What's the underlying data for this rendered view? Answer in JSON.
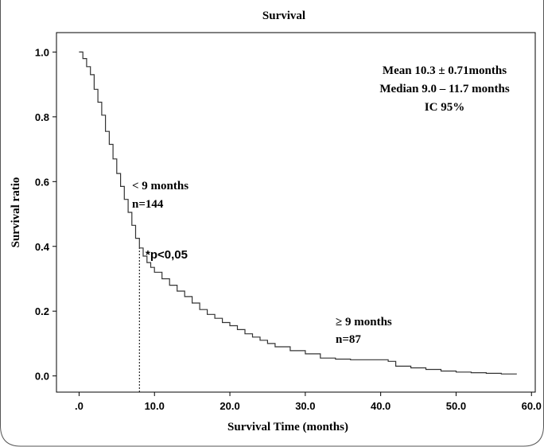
{
  "chart_data": {
    "type": "line",
    "subtype": "kaplan-meier-step",
    "title": "Survival",
    "xlabel": "Survival  Time (months)",
    "ylabel": "Survival  ratio",
    "xlim": [
      -3,
      60.5
    ],
    "ylim": [
      -0.05,
      1.06
    ],
    "x_ticks": [
      0,
      10,
      20,
      30,
      40,
      50,
      60
    ],
    "x_tick_labels": [
      ".0",
      "10.0",
      "20.0",
      "30.0",
      "40.0",
      "50.0",
      "60.0"
    ],
    "y_ticks": [
      0.0,
      0.2,
      0.4,
      0.6,
      0.8,
      1.0
    ],
    "y_tick_labels": [
      "0.0",
      "0.2",
      "0.4",
      "0.6",
      "0.8",
      "1.0"
    ],
    "grid": false,
    "series": [
      {
        "x": [
          0.0,
          0.5,
          1.0,
          1.5,
          2.0,
          2.5,
          3.0,
          3.5,
          4.0,
          4.5,
          5.0,
          5.5,
          6.0,
          6.5,
          7.0,
          7.5,
          8.0,
          8.5,
          9.0,
          9.5,
          10.0,
          11.0,
          12.0,
          13.0,
          14.0,
          15.0,
          16.0,
          17.0,
          18.0,
          19.0,
          20.0,
          21.0,
          22.0,
          23.0,
          24.0,
          25.0,
          26.0,
          28.0,
          30.0,
          32.0,
          34.0,
          36.0,
          38.0,
          40.0,
          41.0,
          42.0,
          44.0,
          46.0,
          48.0,
          50.0,
          52.0,
          54.0,
          56.0,
          58.0
        ],
        "y": [
          1.0,
          0.98,
          0.955,
          0.93,
          0.885,
          0.845,
          0.805,
          0.755,
          0.715,
          0.67,
          0.625,
          0.585,
          0.545,
          0.505,
          0.465,
          0.425,
          0.395,
          0.37,
          0.35,
          0.335,
          0.32,
          0.3,
          0.28,
          0.262,
          0.245,
          0.225,
          0.205,
          0.19,
          0.178,
          0.165,
          0.155,
          0.143,
          0.13,
          0.12,
          0.11,
          0.1,
          0.09,
          0.078,
          0.068,
          0.055,
          0.052,
          0.05,
          0.05,
          0.05,
          0.045,
          0.03,
          0.025,
          0.02,
          0.015,
          0.012,
          0.01,
          0.008,
          0.006,
          0.005
        ]
      }
    ],
    "annotations": {
      "stats": [
        "Mean 10.3 ± 0.71months",
        "Median 9.0 – 11.7 months",
        "IC 95%"
      ],
      "group_low_label": "< 9 months",
      "group_low_n": "n=144",
      "pvalue": "*p<0,05",
      "group_high_label": "≥ 9 months",
      "group_high_n": "n=87",
      "cutoff_x": 8.0
    }
  }
}
